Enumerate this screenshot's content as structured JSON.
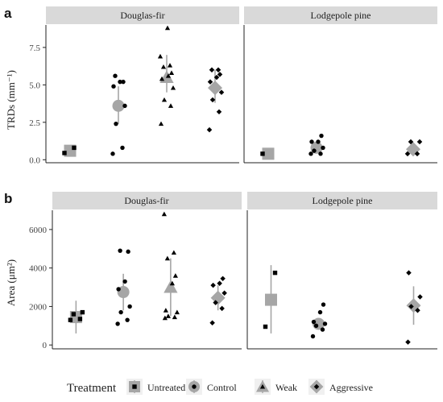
{
  "legend": {
    "title": "Treatment",
    "items": [
      {
        "label": "Untreated",
        "shape": "square"
      },
      {
        "label": "Control",
        "shape": "circle"
      },
      {
        "label": "Weak",
        "shape": "triangle"
      },
      {
        "label": "Aggressive",
        "shape": "diamond"
      }
    ]
  },
  "colors": {
    "point": "#000000",
    "summary": "#a6a6a6",
    "strip": "#d9d9d9",
    "axis": "#222222"
  },
  "chart_data": [
    {
      "type": "scatter",
      "panel_letter": "a",
      "ylabel": "TRDs (mm⁻¹)",
      "ylim": [
        -0.2,
        9.0
      ],
      "yticks": [
        0.0,
        2.5,
        5.0,
        7.5
      ],
      "ytick_labels": [
        "0.0",
        "2.5",
        "5.0",
        "7.5"
      ],
      "grid": false,
      "facets": [
        {
          "title": "Douglas-fir",
          "groups": [
            {
              "treatment": "Untreated",
              "mean": 0.6,
              "ci": [
                0.45,
                0.75
              ],
              "points": [
                0.45,
                0.8
              ]
            },
            {
              "treatment": "Control",
              "mean": 3.6,
              "ci": [
                2.4,
                4.9
              ],
              "points": [
                0.4,
                0.8,
                2.4,
                3.6,
                4.9,
                5.2,
                5.2,
                5.6
              ]
            },
            {
              "treatment": "Weak",
              "mean": 5.5,
              "ci": [
                4.5,
                7.0
              ],
              "points": [
                2.4,
                3.6,
                4.0,
                4.8,
                5.4,
                5.6,
                5.8,
                6.2,
                6.3,
                6.9,
                8.8
              ]
            },
            {
              "treatment": "Aggressive",
              "mean": 4.8,
              "ci": [
                3.8,
                6.0
              ],
              "points": [
                2.0,
                3.2,
                4.0,
                4.5,
                5.2,
                5.5,
                5.7,
                6.0,
                6.0
              ]
            }
          ]
        },
        {
          "title": "Lodgepole pine",
          "groups": [
            {
              "treatment": "Untreated",
              "mean": 0.4,
              "ci": [
                0.35,
                0.45
              ],
              "points": [
                0.4
              ]
            },
            {
              "treatment": "Control",
              "mean": 0.8,
              "ci": [
                0.5,
                1.2
              ],
              "points": [
                0.4,
                0.4,
                0.6,
                0.8,
                1.2,
                1.2,
                1.6
              ]
            },
            {
              "treatment": "Aggressive",
              "mean": 0.7,
              "ci": [
                0.5,
                1.0
              ],
              "points": [
                0.4,
                0.4,
                1.2,
                1.2
              ]
            }
          ]
        }
      ]
    },
    {
      "type": "scatter",
      "panel_letter": "b",
      "ylabel": "Area (μm²)",
      "ylim": [
        -200,
        7000
      ],
      "yticks": [
        0,
        2000,
        4000,
        6000
      ],
      "ytick_labels": [
        "0",
        "2000",
        "4000",
        "6000"
      ],
      "grid": false,
      "facets": [
        {
          "title": "Douglas-fir",
          "groups": [
            {
              "treatment": "Untreated",
              "mean": 1450,
              "ci": [
                600,
                2300
              ],
              "points": [
                1300,
                1350,
                1600,
                1700
              ]
            },
            {
              "treatment": "Control",
              "mean": 2750,
              "ci": [
                1800,
                3700
              ],
              "points": [
                1100,
                1300,
                1700,
                2000,
                2900,
                3300,
                4850,
                4900
              ]
            },
            {
              "treatment": "Weak",
              "mean": 3000,
              "ci": [
                1500,
                4500
              ],
              "points": [
                1400,
                1450,
                1500,
                1700,
                1800,
                3200,
                3600,
                4500,
                4800,
                6800
              ]
            },
            {
              "treatment": "Aggressive",
              "mean": 2450,
              "ci": [
                1800,
                3100
              ],
              "points": [
                1150,
                1900,
                2200,
                2700,
                3100,
                3200,
                3450
              ]
            }
          ]
        },
        {
          "title": "Lodgepole pine",
          "groups": [
            {
              "treatment": "Untreated",
              "mean": 2350,
              "ci": [
                600,
                4150
              ],
              "points": [
                950,
                3750
              ]
            },
            {
              "treatment": "Control",
              "mean": 1100,
              "ci": [
                800,
                1400
              ],
              "points": [
                450,
                800,
                1000,
                1100,
                1200,
                1700,
                2100
              ]
            },
            {
              "treatment": "Aggressive",
              "mean": 2050,
              "ci": [
                1050,
                3050
              ],
              "points": [
                150,
                1800,
                2000,
                2500,
                3750
              ]
            }
          ]
        }
      ]
    }
  ]
}
